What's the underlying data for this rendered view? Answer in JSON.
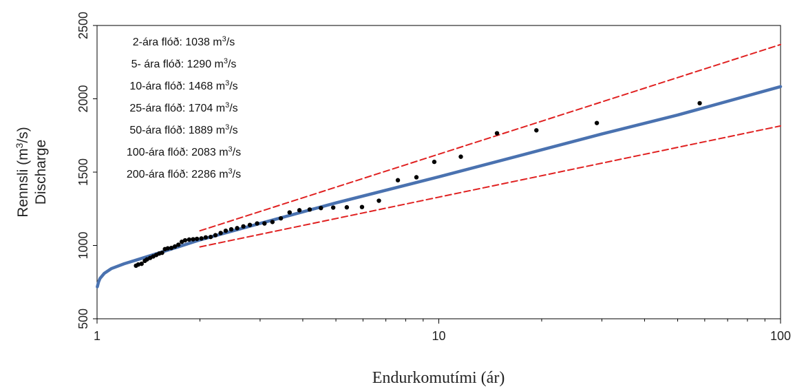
{
  "chart_data": {
    "type": "scatter",
    "xlabel": "Endurkomutími (ár)",
    "ylabel_line1": "Rennsli (m3/s)",
    "ylabel_line2": "Discharge",
    "x_scale": "log",
    "xlim": [
      1,
      100
    ],
    "ylim": [
      500,
      2500
    ],
    "x_ticks": [
      1,
      10,
      100
    ],
    "y_ticks": [
      500,
      1000,
      1500,
      2000,
      2500
    ],
    "grid": false,
    "annotations": [
      {
        "label": "2-ára flóð: 1038 m",
        "unit_sup": "3",
        "unit_tail": "/s"
      },
      {
        "label": "5- ára flóð: 1290 m",
        "unit_sup": "3",
        "unit_tail": "/s"
      },
      {
        "label": "10-ára flóð: 1468 m",
        "unit_sup": "3",
        "unit_tail": "/s"
      },
      {
        "label": "25-ára flóð: 1704 m",
        "unit_sup": "3",
        "unit_tail": "/s"
      },
      {
        "label": "50-ára flóð: 1889 m",
        "unit_sup": "3",
        "unit_tail": "/s"
      },
      {
        "label": "100-ára flóð: 2083 m",
        "unit_sup": "3",
        "unit_tail": "/s"
      },
      {
        "label": "200-ára flóð: 2286 m",
        "unit_sup": "3",
        "unit_tail": "/s"
      }
    ],
    "series": [
      {
        "kind": "points",
        "color": "#000000",
        "x": [
          1.3,
          1.32,
          1.35,
          1.38,
          1.4,
          1.43,
          1.46,
          1.49,
          1.52,
          1.55,
          1.58,
          1.61,
          1.65,
          1.69,
          1.73,
          1.77,
          1.81,
          1.86,
          1.91,
          1.96,
          2.02,
          2.08,
          2.15,
          2.22,
          2.3,
          2.38,
          2.47,
          2.57,
          2.68,
          2.8,
          2.94,
          3.09,
          3.26,
          3.45,
          3.66,
          3.91,
          4.19,
          4.52,
          4.91,
          5.38,
          5.96,
          6.68,
          7.59,
          8.6,
          9.7,
          11.6,
          14.8,
          19.3,
          29.0,
          58.0
        ],
        "y": [
          862,
          870,
          875,
          895,
          905,
          915,
          925,
          935,
          945,
          950,
          975,
          980,
          983,
          993,
          1005,
          1025,
          1035,
          1040,
          1042,
          1045,
          1048,
          1055,
          1058,
          1070,
          1085,
          1100,
          1110,
          1118,
          1130,
          1140,
          1150,
          1150,
          1160,
          1185,
          1225,
          1240,
          1245,
          1255,
          1258,
          1260,
          1262,
          1305,
          1445,
          1465,
          1570,
          1605,
          1765,
          1785,
          1835,
          1970
        ]
      },
      {
        "kind": "fit",
        "color": "#4a72b0",
        "x": [
          1.002,
          1.01,
          1.02,
          1.05,
          1.1,
          1.2,
          1.3,
          1.5,
          1.7,
          2,
          3,
          5,
          10,
          20,
          30,
          50,
          100
        ],
        "y": [
          718,
          750,
          775,
          810,
          842,
          875,
          900,
          945,
          985,
          1038,
          1150,
          1290,
          1468,
          1652,
          1760,
          1889,
          2083
        ]
      },
      {
        "kind": "confidence-upper",
        "color": "#e02020",
        "x": [
          2,
          100
        ],
        "y": [
          1100,
          2370
        ]
      },
      {
        "kind": "confidence-lower",
        "color": "#e02020",
        "x": [
          2,
          100
        ],
        "y": [
          990,
          1815
        ]
      }
    ]
  }
}
